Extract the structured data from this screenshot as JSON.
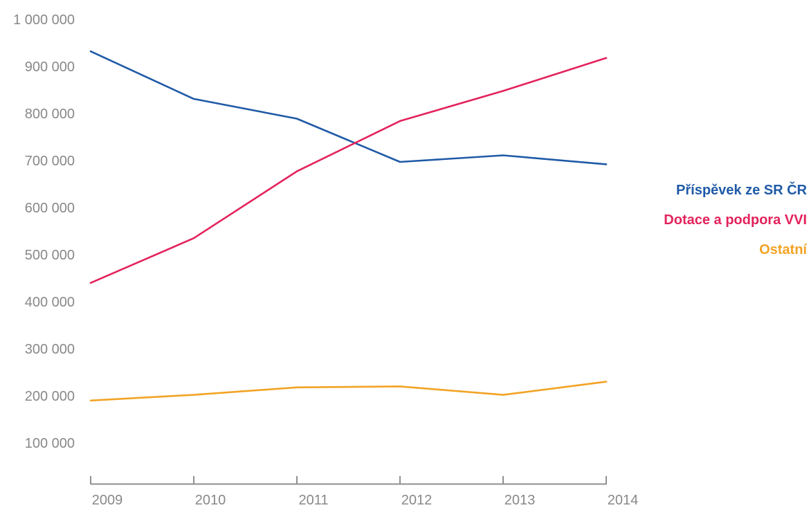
{
  "chart_data": {
    "type": "line",
    "title": "",
    "xlabel": "",
    "ylabel": "",
    "x": [
      2009,
      2010,
      2011,
      2012,
      2013,
      2014
    ],
    "categories": [
      "2009",
      "2010",
      "2011",
      "2012",
      "2013",
      "2014"
    ],
    "y_ticks": [
      "1 000 000",
      "900 000",
      "800 000",
      "700 000",
      "600 000",
      "500 000",
      "400 000",
      "300 000",
      "200 000",
      "100 000"
    ],
    "ylim": [
      0,
      1000000
    ],
    "grid": false,
    "legend_position": "right",
    "series": [
      {
        "name": "Příspěvek ze SR ČR",
        "color": "#1f5aa6",
        "values": [
          932000,
          831000,
          789000,
          697000,
          711000,
          692000
        ]
      },
      {
        "name": "Dotace a podpora VVI",
        "color": "#e3225c",
        "values": [
          440000,
          535000,
          677000,
          784000,
          848000,
          918000
        ]
      },
      {
        "name": "Ostatní",
        "color": "#f2a324",
        "values": [
          190000,
          202000,
          218000,
          220000,
          202000,
          230000
        ]
      }
    ]
  }
}
